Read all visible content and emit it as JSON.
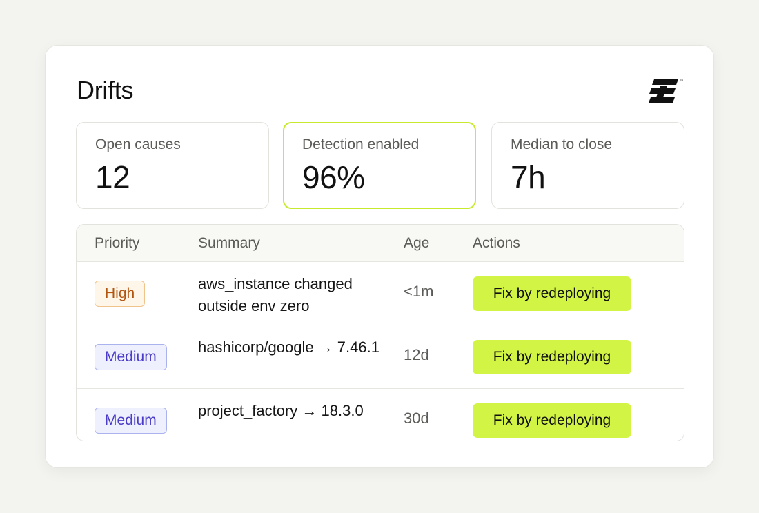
{
  "card": {
    "title": "Drifts"
  },
  "logo": {
    "icon": "brand-logo-icon"
  },
  "stats": [
    {
      "label": "Open causes",
      "value": "12"
    },
    {
      "label": "Detection enabled",
      "value": "96%"
    },
    {
      "label": "Median to close",
      "value": "7h"
    }
  ],
  "table": {
    "headers": {
      "priority": "Priority",
      "summary": "Summary",
      "age": "Age",
      "actions": "Actions"
    },
    "rows": [
      {
        "priority": "High",
        "summary": "aws_instance changed outside env zero",
        "age": "<1m",
        "action": "Fix by redeploying"
      },
      {
        "priority": "Medium",
        "summary": "hashicorp/google → 7.46.1",
        "age": "12d",
        "action": "Fix by redeploying"
      },
      {
        "priority": "Medium",
        "summary": "project_factory → 18.3.0",
        "age": "30d",
        "action": "Fix by redeploying"
      }
    ]
  },
  "colors": {
    "accent_lime": "#d2f545",
    "highlight_border": "#c6ea2e",
    "high_badge_text": "#b3540f",
    "medium_badge_text": "#4a3cc9"
  }
}
